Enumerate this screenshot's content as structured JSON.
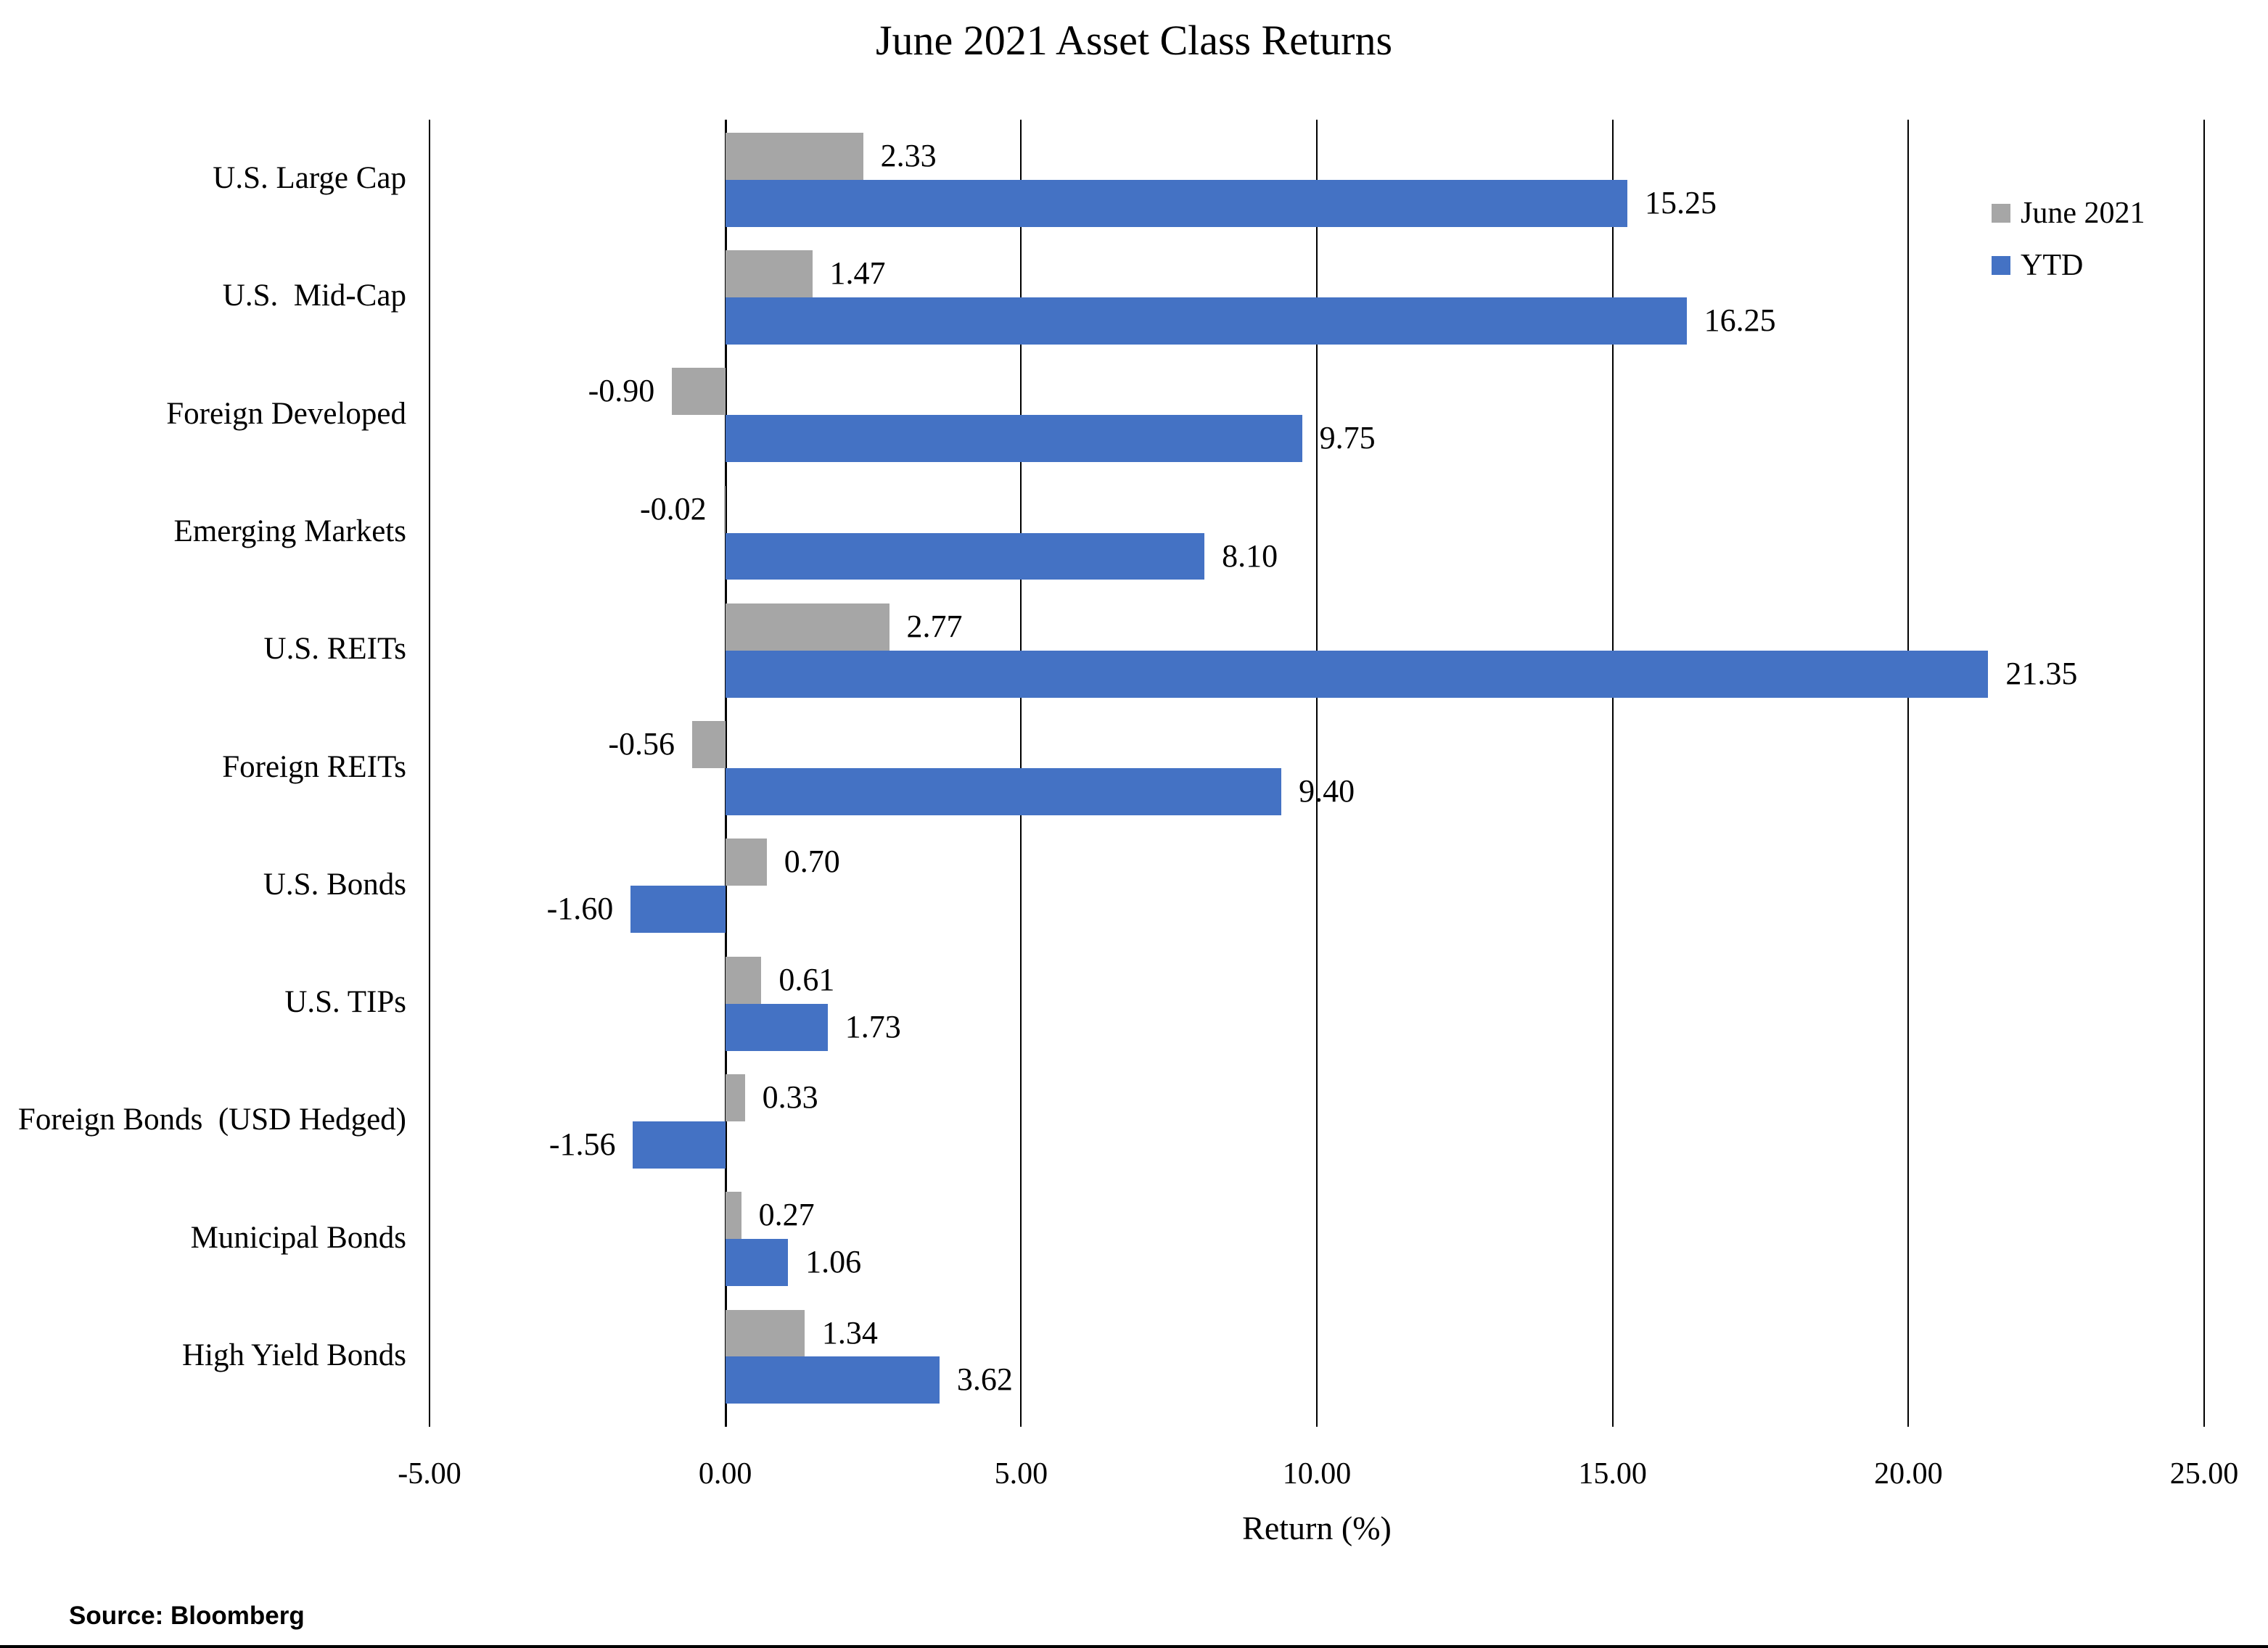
{
  "page": {
    "source_label": "Source: Bloomberg"
  },
  "chart_data": {
    "type": "bar",
    "orientation": "horizontal",
    "title": "June 2021 Asset Class Returns",
    "xlabel": "Return (%)",
    "xlim": [
      -5,
      25
    ],
    "x_ticks": [
      -5,
      0,
      5,
      10,
      15,
      20,
      25
    ],
    "x_tick_labels": [
      "-5.00",
      "0.00",
      "5.00",
      "10.00",
      "15.00",
      "20.00",
      "25.00"
    ],
    "grid": "vertical-gridlines-on",
    "legend_position": "inside-top-right",
    "categories": [
      "U.S. Large Cap",
      "U.S.  Mid-Cap",
      "Foreign Developed",
      "Emerging Markets",
      "U.S. REITs",
      "Foreign REITs",
      "U.S. Bonds",
      "U.S. TIPs",
      "Foreign Bonds  (USD Hedged)",
      "Municipal Bonds",
      "High Yield Bonds"
    ],
    "series": [
      {
        "name": "June 2021",
        "color": "#A6A6A6",
        "values": [
          2.33,
          1.47,
          -0.9,
          -0.02,
          2.77,
          -0.56,
          0.7,
          0.61,
          0.33,
          0.27,
          1.34
        ]
      },
      {
        "name": "YTD",
        "color": "#4472C4",
        "values": [
          15.25,
          16.25,
          9.75,
          8.1,
          21.35,
          9.4,
          -1.6,
          1.73,
          -1.56,
          1.06,
          3.62
        ]
      }
    ],
    "value_label_decimals": 2,
    "text_color": "#000000",
    "gridline_color": "#000000"
  }
}
